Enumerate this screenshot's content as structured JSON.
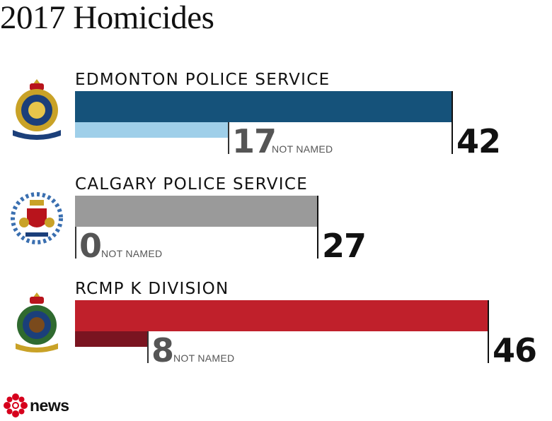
{
  "title": "2017 Homicides",
  "footer": {
    "logo_text": "news"
  },
  "colors": {
    "edmonton_total": "#15527a",
    "edmonton_unnamed": "#9fcfe9",
    "calgary_total": "#9a9a9a",
    "rcmp_total": "#c0202b",
    "rcmp_unnamed": "#7a1420"
  },
  "not_named_label": "NOT NAMED",
  "chart_data": {
    "type": "bar",
    "title": "2017 Homicides",
    "categories": [
      "EDMONTON POLICE SERVICE",
      "CALGARY POLICE SERVICE",
      "RCMP K DIVISION"
    ],
    "series": [
      {
        "name": "",
        "values": [
          42,
          27,
          46
        ]
      },
      {
        "name": "NOT NAMED",
        "values": [
          17,
          0,
          8
        ]
      }
    ],
    "xlim": [
      0,
      46
    ],
    "grid": false,
    "legend": "none"
  },
  "agencies": [
    {
      "name": "EDMONTON POLICE SERVICE",
      "total": "42",
      "unnamed": "17",
      "crest_icon": "edmonton-police-crest-icon"
    },
    {
      "name": "CALGARY POLICE SERVICE",
      "total": "27",
      "unnamed": "0",
      "crest_icon": "calgary-police-crest-icon"
    },
    {
      "name": "RCMP K DIVISION",
      "total": "46",
      "unnamed": "8",
      "crest_icon": "rcmp-crest-icon"
    }
  ]
}
